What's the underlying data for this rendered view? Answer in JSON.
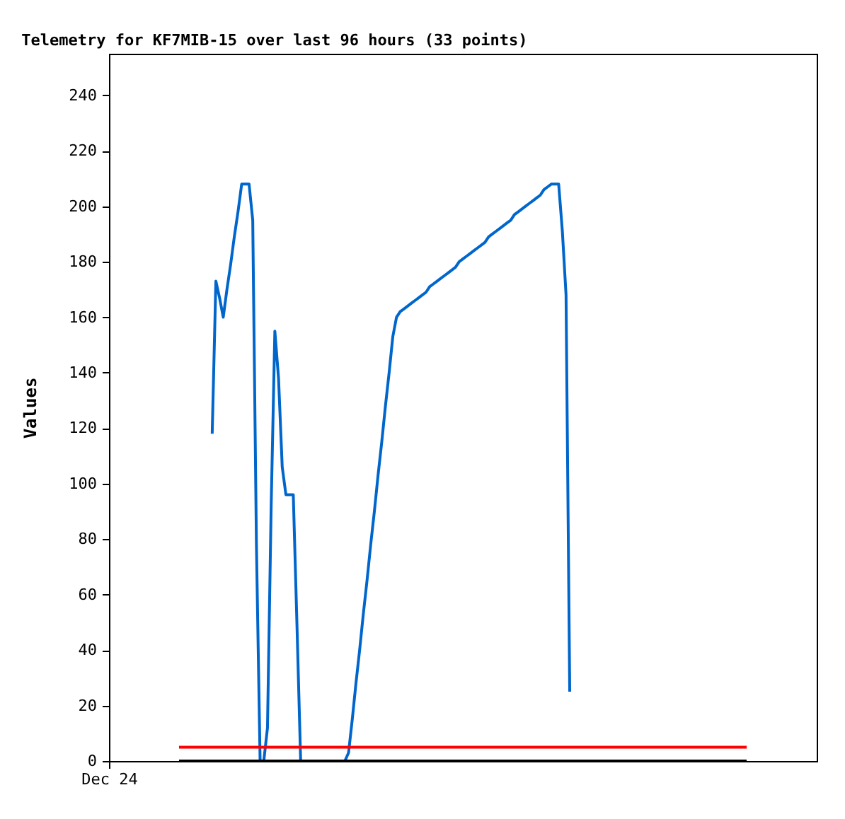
{
  "chart_data": {
    "type": "line",
    "title": "Telemetry for KF7MIB-15 over last 96 hours (33 points)",
    "ylabel": "Values",
    "categories": [
      "Dec 24",
      null,
      null,
      null,
      null,
      null,
      null,
      null,
      null,
      null,
      null,
      null,
      null,
      null,
      null,
      null,
      null,
      null,
      null,
      null,
      null,
      null,
      null,
      null,
      null,
      null,
      null,
      null,
      null,
      null,
      null,
      null,
      null,
      null,
      null,
      null,
      null,
      null,
      null,
      null,
      null,
      null,
      null,
      null,
      null,
      null,
      null,
      null,
      null,
      null,
      null,
      null,
      null,
      null,
      null,
      null,
      null,
      null,
      null,
      null,
      null,
      null,
      null,
      null,
      null,
      null,
      null,
      null,
      null,
      null,
      null,
      null,
      null,
      null,
      null,
      null,
      null,
      null,
      null,
      null,
      null,
      null,
      null,
      null,
      null,
      null,
      null,
      null,
      null,
      null,
      null,
      null,
      null,
      null,
      null,
      null,
      null,
      null,
      null,
      null,
      null,
      null,
      null,
      null,
      null,
      null,
      null,
      null,
      null,
      null,
      null,
      null,
      null,
      null,
      null,
      null,
      null,
      null,
      null,
      null,
      null,
      null,
      null,
      null,
      null,
      null,
      null,
      null,
      null,
      null,
      null,
      null,
      null,
      null,
      null,
      null,
      null,
      null,
      null,
      null,
      null,
      null,
      null,
      null,
      null,
      null,
      null,
      null,
      null,
      null,
      null,
      null,
      null,
      null,
      null,
      null,
      null,
      null,
      null,
      null,
      null,
      null,
      null,
      null,
      null,
      null,
      null,
      null,
      null,
      null,
      null,
      null,
      null,
      null,
      null,
      null,
      null,
      null,
      null,
      null,
      null,
      null,
      null,
      null,
      null,
      null,
      null,
      null,
      null,
      null,
      null,
      null,
      null
    ],
    "ylim": [
      0,
      255
    ],
    "yticks": [
      0,
      20,
      40,
      60,
      80,
      100,
      120,
      140,
      160,
      180,
      200,
      220,
      240
    ],
    "grid": false,
    "marker": "none",
    "line_style": "solid",
    "series": [
      {
        "color": "#0066cc",
        "values": [
          null,
          null,
          null,
          null,
          null,
          null,
          null,
          null,
          null,
          null,
          null,
          null,
          null,
          null,
          null,
          null,
          null,
          null,
          null,
          null,
          null,
          null,
          null,
          null,
          null,
          null,
          null,
          null,
          118,
          173,
          167,
          160,
          170,
          179,
          189,
          198,
          208,
          208,
          208,
          195,
          78,
          0,
          0,
          12,
          92,
          155,
          138,
          106,
          96,
          96,
          96,
          49,
          0,
          0,
          0,
          0,
          0,
          0,
          0,
          0,
          0,
          0,
          0,
          0,
          0,
          3,
          15,
          28,
          40,
          53,
          65,
          78,
          90,
          103,
          115,
          128,
          140,
          153,
          160,
          162,
          163,
          164,
          165,
          166,
          167,
          168,
          169,
          171,
          172,
          173,
          174,
          175,
          176,
          177,
          178,
          180,
          181,
          182,
          183,
          184,
          185,
          186,
          187,
          189,
          190,
          191,
          192,
          193,
          194,
          195,
          197,
          198,
          199,
          200,
          201,
          202,
          203,
          204,
          206,
          207,
          208,
          208,
          208,
          191,
          168,
          25,
          null,
          null,
          null,
          null,
          null,
          null,
          null,
          null,
          null,
          null,
          null,
          null,
          null,
          null,
          null,
          null,
          null,
          null,
          null,
          null,
          null,
          null,
          null,
          null,
          null,
          null,
          null,
          null,
          null,
          null,
          null,
          null,
          null,
          null,
          null,
          null,
          null,
          null,
          null,
          null,
          null,
          null,
          null,
          null,
          null,
          null,
          null,
          null,
          null,
          null,
          null,
          null,
          null,
          null,
          null,
          null,
          null,
          null,
          null,
          null,
          null,
          null,
          null,
          null,
          null,
          null,
          null
        ]
      },
      {
        "color": "#ff0000",
        "values": [
          null,
          null,
          null,
          null,
          null,
          null,
          null,
          null,
          null,
          null,
          null,
          null,
          null,
          null,
          null,
          null,
          null,
          null,
          null,
          5,
          5,
          5,
          5,
          5,
          5,
          5,
          5,
          5,
          5,
          5,
          5,
          5,
          5,
          5,
          5,
          5,
          5,
          5,
          5,
          5,
          5,
          5,
          5,
          5,
          5,
          5,
          5,
          5,
          5,
          5,
          5,
          5,
          5,
          5,
          5,
          5,
          5,
          5,
          5,
          5,
          5,
          5,
          5,
          5,
          5,
          5,
          5,
          5,
          5,
          5,
          5,
          5,
          5,
          5,
          5,
          5,
          5,
          5,
          5,
          5,
          5,
          5,
          5,
          5,
          5,
          5,
          5,
          5,
          5,
          5,
          5,
          5,
          5,
          5,
          5,
          5,
          5,
          5,
          5,
          5,
          5,
          5,
          5,
          5,
          5,
          5,
          5,
          5,
          5,
          5,
          5,
          5,
          5,
          5,
          5,
          5,
          5,
          5,
          5,
          5,
          5,
          5,
          5,
          5,
          5,
          5,
          5,
          5,
          5,
          5,
          5,
          5,
          5,
          5,
          5,
          5,
          5,
          5,
          5,
          5,
          5,
          5,
          5,
          5,
          5,
          5,
          5,
          5,
          5,
          5,
          5,
          5,
          5,
          5,
          5,
          5,
          5,
          5,
          5,
          5,
          5,
          5,
          5,
          5,
          5,
          5,
          5,
          5,
          5,
          5,
          5,
          5,
          5,
          5,
          null,
          null,
          null,
          null,
          null,
          null,
          null,
          null,
          null,
          null,
          null,
          null,
          null,
          null,
          null,
          null,
          null,
          null,
          null
        ]
      },
      {
        "color": "#000000",
        "values": [
          null,
          null,
          null,
          null,
          null,
          null,
          null,
          null,
          null,
          null,
          null,
          null,
          null,
          null,
          null,
          null,
          null,
          null,
          null,
          0,
          0,
          0,
          0,
          0,
          0,
          0,
          0,
          0,
          0,
          0,
          0,
          0,
          0,
          0,
          0,
          0,
          0,
          0,
          0,
          0,
          0,
          0,
          0,
          0,
          0,
          0,
          0,
          0,
          0,
          0,
          0,
          0,
          0,
          0,
          0,
          0,
          0,
          0,
          0,
          0,
          0,
          0,
          0,
          0,
          0,
          0,
          0,
          0,
          0,
          0,
          0,
          0,
          0,
          0,
          0,
          0,
          0,
          0,
          0,
          0,
          0,
          0,
          0,
          0,
          0,
          0,
          0,
          0,
          0,
          0,
          0,
          0,
          0,
          0,
          0,
          0,
          0,
          0,
          0,
          0,
          0,
          0,
          0,
          0,
          0,
          0,
          0,
          0,
          0,
          0,
          0,
          0,
          0,
          0,
          0,
          0,
          0,
          0,
          0,
          0,
          0,
          0,
          0,
          0,
          0,
          0,
          0,
          0,
          0,
          0,
          0,
          0,
          0,
          0,
          0,
          0,
          0,
          0,
          0,
          0,
          0,
          0,
          0,
          0,
          0,
          0,
          0,
          0,
          0,
          0,
          0,
          0,
          0,
          0,
          0,
          0,
          0,
          0,
          0,
          0,
          0,
          0,
          0,
          0,
          0,
          0,
          0,
          0,
          0,
          0,
          0,
          0,
          0,
          0,
          null,
          null,
          null,
          null,
          null,
          null,
          null,
          null,
          null,
          null,
          null,
          null,
          null,
          null,
          null,
          null,
          null,
          null,
          null
        ]
      }
    ]
  }
}
